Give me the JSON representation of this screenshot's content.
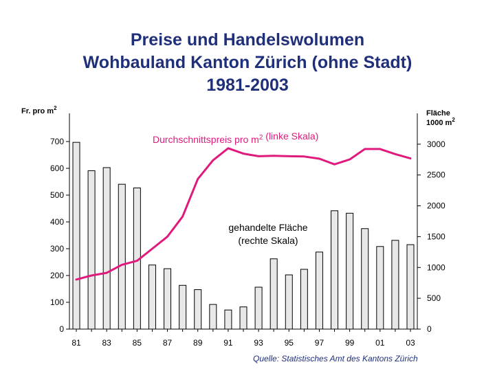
{
  "chart_data": {
    "type": "bar+line",
    "title_lines": [
      "Preise und Handelswolumen",
      "Wohbauland Kanton Zürich (ohne Stadt)",
      "1981-2003"
    ],
    "left_axis": {
      "label": "Fr. pro m²",
      "ylim": [
        0,
        800
      ],
      "ticks": [
        {
          "v": 0,
          "t": "0"
        },
        {
          "v": 100,
          "t": "100"
        },
        {
          "v": 200,
          "t": "200"
        },
        {
          "v": 300,
          "t": "300"
        },
        {
          "v": 400,
          "t": "400"
        },
        {
          "v": 500,
          "t": "500"
        },
        {
          "v": 600,
          "t": "600"
        },
        {
          "v": 700,
          "t": "700"
        }
      ]
    },
    "right_axis": {
      "label_lines": [
        "Fläche",
        "1000 m²"
      ],
      "ylim": [
        0,
        3500
      ],
      "ticks": [
        {
          "v": 0,
          "t": "0"
        },
        {
          "v": 500,
          "t": "500"
        },
        {
          "v": 1000,
          "t": "1000"
        },
        {
          "v": 1500,
          "t": "1500"
        },
        {
          "v": 2000,
          "t": "2000"
        },
        {
          "v": 2500,
          "t": "2500"
        },
        {
          "v": 3000,
          "t": "3000"
        }
      ]
    },
    "x": [
      1981,
      1982,
      1983,
      1984,
      1985,
      1986,
      1987,
      1988,
      1989,
      1990,
      1991,
      1992,
      1993,
      1994,
      1995,
      1996,
      1997,
      1998,
      1999,
      2000,
      2001,
      2002,
      2003
    ],
    "x_ticks": [
      {
        "v": 1981,
        "t": "81"
      },
      {
        "v": 1983,
        "t": "83"
      },
      {
        "v": 1985,
        "t": "85"
      },
      {
        "v": 1987,
        "t": "87"
      },
      {
        "v": 1989,
        "t": "89"
      },
      {
        "v": 1991,
        "t": "91"
      },
      {
        "v": 1993,
        "t": "93"
      },
      {
        "v": 1995,
        "t": "95"
      },
      {
        "v": 1997,
        "t": "97"
      },
      {
        "v": 1999,
        "t": "99"
      },
      {
        "v": 2001,
        "t": "01"
      },
      {
        "v": 2003,
        "t": "03"
      }
    ],
    "area_series": {
      "label_lines": [
        "gehandelte Fläche",
        "(rechte Skala)"
      ],
      "axis": "right",
      "values": [
        3030,
        2570,
        2620,
        2350,
        2290,
        1040,
        980,
        710,
        640,
        400,
        310,
        360,
        680,
        1140,
        880,
        970,
        1250,
        1920,
        1880,
        1630,
        1340,
        1440,
        1370
      ],
      "color": "#e8e8e8"
    },
    "price_series": {
      "label": "Durchschnittspreis pro m² (linke Skala)",
      "axis": "left",
      "values": [
        185,
        200,
        210,
        240,
        255,
        300,
        345,
        420,
        560,
        630,
        675,
        655,
        645,
        647,
        645,
        644,
        636,
        615,
        633,
        672,
        672,
        653,
        637
      ],
      "color": "#e0197d"
    },
    "grid": false,
    "source": "Quelle: Statistisches Amt des Kantons Zürich"
  }
}
